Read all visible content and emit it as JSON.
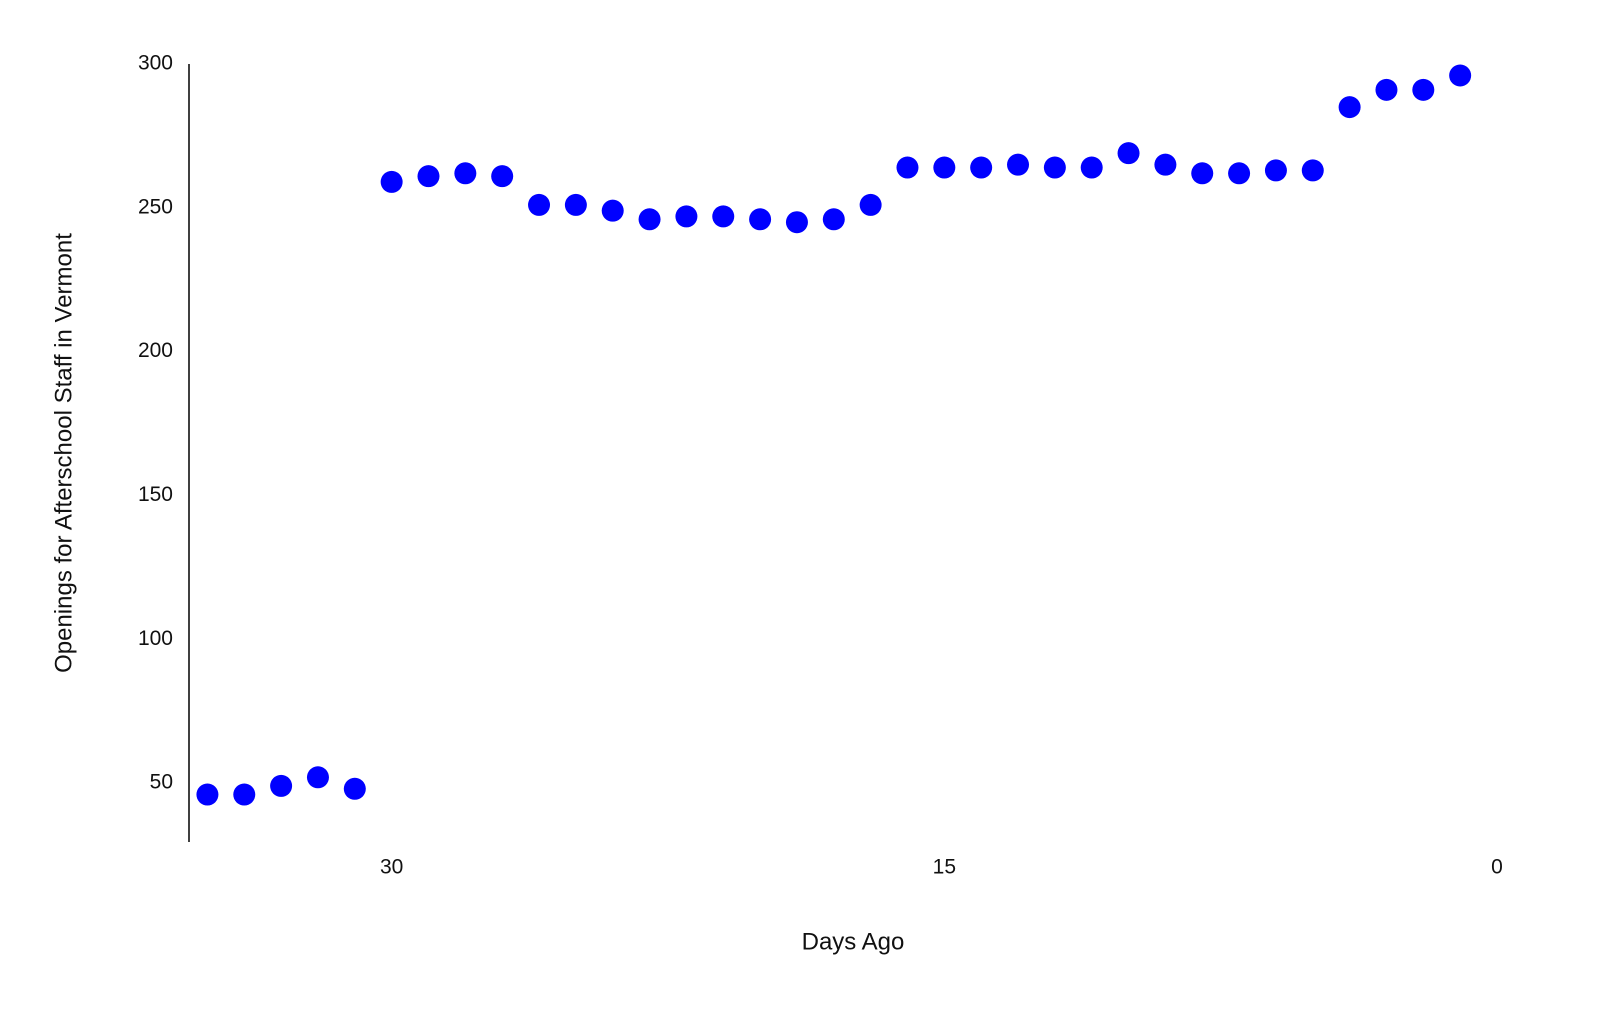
{
  "chart_data": {
    "type": "scatter",
    "x_label": "Days Ago",
    "y_label": "Openings for Afterschool Staff in Vermont",
    "series": [
      {
        "color": "#0000ff",
        "x": [
          35,
          34,
          33,
          32,
          31,
          30,
          29,
          28,
          27,
          26,
          25,
          24,
          23,
          22,
          21,
          20,
          19,
          18,
          17,
          16,
          15,
          14,
          13,
          12,
          11,
          10,
          9,
          8,
          7,
          6,
          5,
          4,
          3,
          2,
          1
        ],
        "values": [
          46,
          46,
          49,
          52,
          48,
          259,
          261,
          262,
          261,
          251,
          251,
          249,
          246,
          247,
          247,
          246,
          245,
          246,
          251,
          264,
          264,
          264,
          265,
          264,
          264,
          269,
          265,
          262,
          262,
          263,
          263,
          285,
          291,
          291,
          296
        ]
      }
    ],
    "xlim": [
      35.5,
      0
    ],
    "xticks": [
      30,
      15,
      0
    ],
    "ylim": [
      29.5,
      300
    ],
    "yticks": [
      50,
      100,
      150,
      200,
      250,
      300
    ],
    "grid": false
  }
}
